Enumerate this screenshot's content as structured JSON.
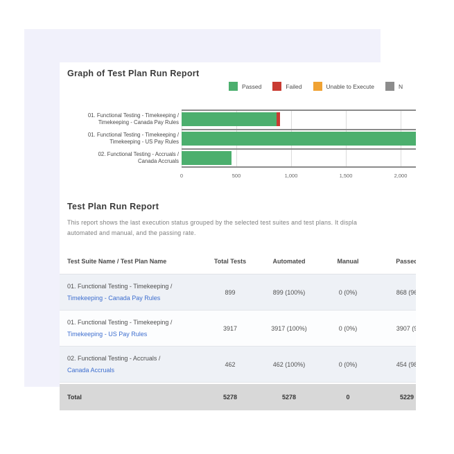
{
  "colors": {
    "accent_bg": "#F1F1FB",
    "card_bg": "#FFFFFF",
    "passed": "#4CAF6E",
    "failed": "#C93B32",
    "unable_to_execute": "#F0A233",
    "gray_status": "#8C8C8C",
    "link": "#3D6ECF",
    "row_stripe": "#EEF1F6",
    "total_row_bg": "#D8D8D8"
  },
  "graph_section": {
    "title": "Graph of Test Plan Run Report",
    "legend": [
      {
        "label": "Passed",
        "color": "#4CAF6E"
      },
      {
        "label": "Failed",
        "color": "#C93B32"
      },
      {
        "label": "Unable to Execute",
        "color": "#F0A233"
      },
      {
        "label": "N",
        "color": "#8C8C8C"
      }
    ],
    "categories": [
      {
        "line1": "01. Functional Testing - Timekeeping /",
        "line2": "Timekeeping - Canada Pay Rules"
      },
      {
        "line1": "01. Functional Testing - Timekeeping /",
        "line2": "Timekeeping - US Pay Rules"
      },
      {
        "line1": "02. Functional Testing - Accruals /",
        "line2": "Canada Accruals"
      }
    ],
    "x_ticks": [
      "0",
      "500",
      "1,000",
      "1,500",
      "2,000"
    ]
  },
  "chart_data": {
    "type": "bar",
    "orientation": "horizontal",
    "stacked": true,
    "title": "Graph of Test Plan Run Report",
    "categories": [
      "01. Functional Testing - Timekeeping / Timekeeping - Canada Pay Rules",
      "01. Functional Testing - Timekeeping / Timekeeping - US Pay Rules",
      "02. Functional Testing - Accruals / Canada Accruals"
    ],
    "series": [
      {
        "name": "Passed",
        "color": "#4CAF6E",
        "values": [
          868,
          3907,
          454
        ]
      },
      {
        "name": "Failed",
        "color": "#C93B32",
        "values": [
          31,
          10,
          0
        ]
      }
    ],
    "x_tick_values": [
      0,
      500,
      1000,
      1500,
      2000
    ],
    "x_axis_visible_max": 2140,
    "legend_position": "top-right",
    "gridlines": "vertical"
  },
  "report_section": {
    "title": "Test Plan Run Report",
    "description_line1": "This report shows the last execution status grouped by the selected test suites and test plans. It displa",
    "description_line2": "automated and manual, and the passing rate."
  },
  "table": {
    "headers": [
      "Test Suite Name / Test Plan Name",
      "Total Tests",
      "Automated",
      "Manual",
      "Passed"
    ],
    "rows": [
      {
        "suite": "01. Functional Testing - Timekeeping /",
        "plan": "Timekeeping - Canada Pay Rules",
        "total_tests": "899",
        "automated": "899 (100%)",
        "manual": "0 (0%)",
        "passed": "868 (96"
      },
      {
        "suite": "01. Functional Testing - Timekeeping /",
        "plan": "Timekeeping - US Pay Rules",
        "total_tests": "3917",
        "automated": "3917 (100%)",
        "manual": "0 (0%)",
        "passed": "3907 (9"
      },
      {
        "suite": "02. Functional Testing - Accruals /",
        "plan": "Canada Accruals",
        "total_tests": "462",
        "automated": "462 (100%)",
        "manual": "0 (0%)",
        "passed": "454 (98"
      }
    ],
    "total_row": {
      "label": "Total",
      "total_tests": "5278",
      "automated": "5278",
      "manual": "0",
      "passed": "5229"
    }
  }
}
